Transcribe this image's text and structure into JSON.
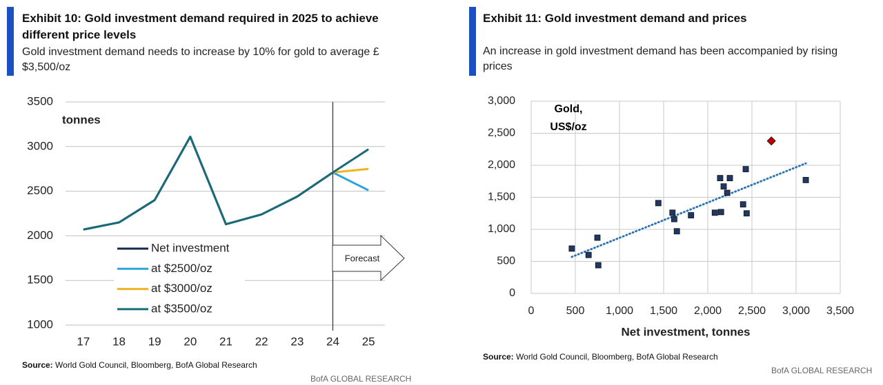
{
  "panels": [
    {
      "title": "Exhibit 10: Gold investment demand required in 2025 to achieve different price levels",
      "subtitle": "Gold investment demand needs to increase by 10% for gold to average £$3,500/oz",
      "source_label": "Source:",
      "source": "World Gold Council, Bloomberg, BofA Global Research",
      "brand": "BofA GLOBAL RESEARCH"
    },
    {
      "title": "Exhibit 11: Gold investment demand and prices",
      "subtitle": "An increase in gold investment demand has been accompanied by rising prices",
      "source_label": "Source:",
      "source": "World Gold Council, Bloomberg, BofA Global Research",
      "brand": "BofA GLOBAL RESEARCH"
    }
  ],
  "chart_data": [
    {
      "type": "line",
      "ylabel": "tonnes",
      "categories": [
        "17",
        "18",
        "19",
        "20",
        "21",
        "22",
        "23",
        "24",
        "25"
      ],
      "ylim": [
        1000,
        3500
      ],
      "yticks": [
        1000,
        1500,
        2000,
        2500,
        3000,
        3500
      ],
      "grid": true,
      "annotation": "Forecast",
      "series": [
        {
          "name": "Net investment",
          "color": "#14284b",
          "values": [
            2070,
            2150,
            2400,
            3110,
            2130,
            2240,
            2440,
            2710,
            null
          ]
        },
        {
          "name": "at $2500/oz",
          "color": "#2ea3dc",
          "values": [
            null,
            null,
            null,
            null,
            null,
            null,
            null,
            2710,
            2510
          ]
        },
        {
          "name": "at $3000/oz",
          "color": "#f0b323",
          "values": [
            null,
            null,
            null,
            null,
            null,
            null,
            null,
            2710,
            2750
          ]
        },
        {
          "name": "at $3500/oz",
          "color": "#1a6b7a",
          "values": [
            2070,
            2150,
            2400,
            3110,
            2130,
            2240,
            2440,
            2710,
            2970
          ]
        }
      ]
    },
    {
      "type": "scatter",
      "xlabel": "Net investment, tonnes",
      "ylabel": "Gold, US$/oz",
      "xlim": [
        0,
        3500
      ],
      "xticks": [
        0,
        500,
        {
          "value": 1000,
          "label": "1,000"
        },
        {
          "value": 1500,
          "label": "1,500"
        },
        {
          "value": 2000,
          "label": "2,000"
        },
        {
          "value": 2500,
          "label": "2,500"
        },
        {
          "value": 3000,
          "label": "3,000"
        },
        {
          "value": 3500,
          "label": "3,500"
        }
      ],
      "ylim": [
        0,
        3000
      ],
      "yticks": [
        0,
        500,
        {
          "value": 1000,
          "label": "1,000"
        },
        {
          "value": 1500,
          "label": "1,500"
        },
        {
          "value": 2000,
          "label": "2,000"
        },
        {
          "value": 2500,
          "label": "2,500"
        },
        {
          "value": 3000,
          "label": "3,000"
        }
      ],
      "grid": true,
      "series": [
        {
          "color": "#1f3864",
          "marker": "square",
          "x": [
            460,
            650,
            750,
            760,
            1440,
            1600,
            1620,
            1650,
            1810,
            2080,
            2140,
            2150,
            2180,
            2220,
            2250,
            2400,
            2430,
            2440,
            3110
          ],
          "y": [
            700,
            600,
            870,
            440,
            1410,
            1260,
            1160,
            970,
            1220,
            1260,
            1800,
            1270,
            1670,
            1570,
            1800,
            1390,
            1940,
            1250,
            1770
          ]
        },
        {
          "color": "#c00000",
          "marker": "diamond",
          "x": [
            2720
          ],
          "y": [
            2380
          ]
        }
      ],
      "trend": {
        "color": "#2e75b6",
        "x": [
          460,
          3110
        ],
        "y": [
          570,
          2030
        ]
      }
    }
  ]
}
